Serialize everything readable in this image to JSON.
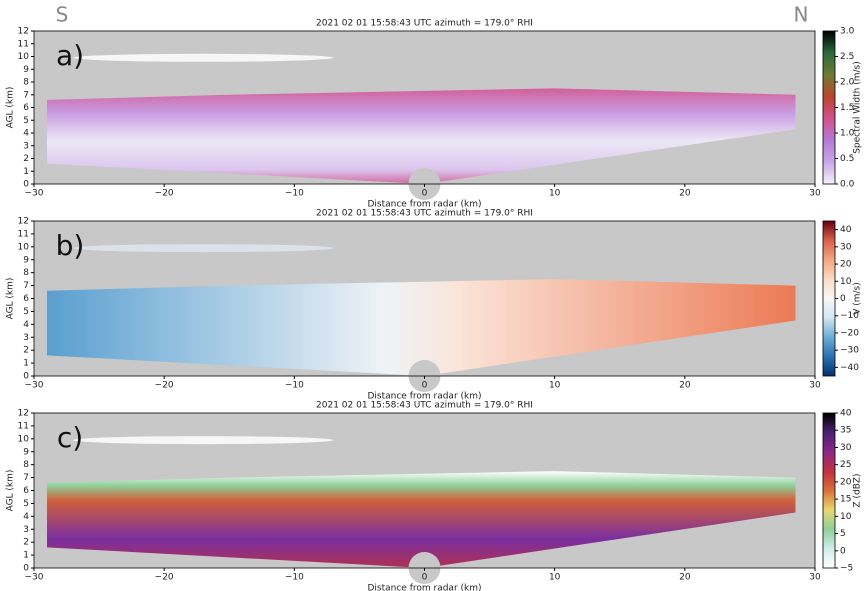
{
  "compass": {
    "left": "S",
    "right": "N"
  },
  "chart_data": [
    {
      "type": "heatmap",
      "panel_label": "a)",
      "title": "2021 02 01     15:58:43 UTC     azimuth = 179.0°     RHI",
      "xlabel": "Distance from radar (km)",
      "ylabel": "AGL (km)",
      "xlim": [
        -30,
        30
      ],
      "xticks": [
        {
          "value": -30,
          "label": "−30"
        },
        {
          "value": -20,
          "label": "−20"
        },
        {
          "value": -10,
          "label": "−10"
        },
        0,
        10,
        20,
        30
      ],
      "ylim": [
        0,
        12
      ],
      "yticks": [
        0,
        1,
        2,
        3,
        4,
        5,
        6,
        7,
        8,
        9,
        10,
        11,
        12
      ],
      "colorbar_label": "Spectral Width (m/s)",
      "clim": [
        0,
        3
      ],
      "cticks": [
        {
          "value": 0,
          "label": "0.0"
        },
        {
          "value": 0.5,
          "label": "0.5"
        },
        {
          "value": 1,
          "label": "1.0"
        },
        {
          "value": 1.5,
          "label": "1.5"
        },
        {
          "value": 2,
          "label": "2.0"
        },
        {
          "value": 2.5,
          "label": "2.5"
        },
        {
          "value": 3,
          "label": "3.0"
        }
      ],
      "colormap": [
        "#f4f2fb",
        "#c9a8e6",
        "#b47ad6",
        "#d2508c",
        "#b8462e",
        "#6e7a35",
        "#2a6a3a",
        "#000000"
      ]
    },
    {
      "type": "heatmap",
      "panel_label": "b)",
      "title": "2021 02 01     15:58:43 UTC     azimuth = 179.0°     RHI",
      "xlabel": "Distance from radar (km)",
      "ylabel": "AGL (km)",
      "xlim": [
        -30,
        30
      ],
      "xticks": [
        {
          "value": -30,
          "label": "−30"
        },
        {
          "value": -20,
          "label": "−20"
        },
        {
          "value": -10,
          "label": "−10"
        },
        0,
        10,
        20,
        30
      ],
      "ylim": [
        0,
        12
      ],
      "yticks": [
        0,
        1,
        2,
        3,
        4,
        5,
        6,
        7,
        8,
        9,
        10,
        11,
        12
      ],
      "colorbar_label": "V (m/s)",
      "clim": [
        -45,
        45
      ],
      "cticks": [
        {
          "value": -40,
          "label": "−40"
        },
        {
          "value": -30,
          "label": "−30"
        },
        {
          "value": -20,
          "label": "−20"
        },
        {
          "value": -10,
          "label": "−10"
        },
        0,
        10,
        20,
        30,
        40
      ],
      "colormap": [
        "#08306b",
        "#2a71b2",
        "#6aaed6",
        "#d1e5f0",
        "#f7f7f7",
        "#fddbc7",
        "#f4a582",
        "#d6604d",
        "#67000d"
      ]
    },
    {
      "type": "heatmap",
      "panel_label": "c)",
      "title": "2021 02 01     15:58:43 UTC     azimuth = 179.0°     RHI",
      "xlabel": "Distance from radar (km)",
      "ylabel": "AGL (km)",
      "xlim": [
        -30,
        30
      ],
      "xticks": [
        {
          "value": -30,
          "label": "−30"
        },
        {
          "value": -20,
          "label": "−20"
        },
        {
          "value": -10,
          "label": "−10"
        },
        0,
        10,
        20,
        30
      ],
      "ylim": [
        0,
        12
      ],
      "yticks": [
        0,
        1,
        2,
        3,
        4,
        5,
        6,
        7,
        8,
        9,
        10,
        11,
        12
      ],
      "colorbar_label": "Z (dBZ)",
      "clim": [
        -5,
        40
      ],
      "cticks": [
        {
          "value": -5,
          "label": "−5"
        },
        0,
        5,
        10,
        15,
        20,
        25,
        30,
        35,
        40
      ],
      "colormap": [
        "#ffffff",
        "#cfeee8",
        "#8fd09a",
        "#e8d870",
        "#d8703a",
        "#c03040",
        "#8a2a8a",
        "#4a2070",
        "#000000"
      ]
    }
  ]
}
